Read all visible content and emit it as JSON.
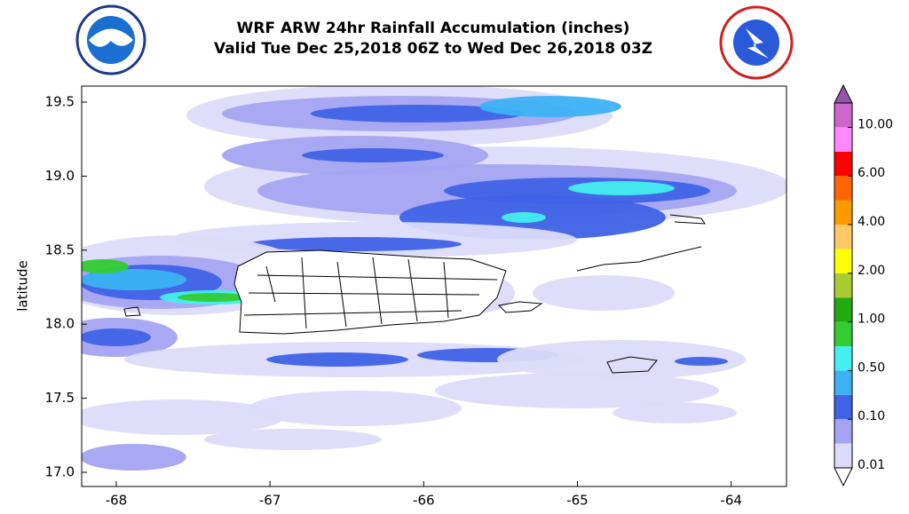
{
  "chart_data": {
    "type": "contour-map",
    "title": "WRF ARW 24hr Rainfall Accumulation (inches)",
    "subtitle": "Valid Tue Dec 25,2018 06Z to Wed Dec 26,2018 03Z",
    "ylabel": "latitude",
    "xlim": [
      -68.225,
      -63.64
    ],
    "ylim": [
      16.904,
      19.608
    ],
    "xticks": [
      -68,
      -67,
      -66,
      -65,
      -64
    ],
    "yticks": [
      {
        "value": 17,
        "label": "17.0"
      },
      17.5,
      {
        "value": 18,
        "label": "18.0"
      },
      18.5,
      {
        "value": 19,
        "label": "19.0"
      },
      19.5
    ],
    "colorbar": {
      "ticks": [
        0.01,
        {
          "value": 0.1,
          "label": "0.10"
        },
        {
          "value": 0.5,
          "label": "0.50"
        },
        {
          "value": 1,
          "label": "1.00"
        },
        {
          "value": 2,
          "label": "2.00"
        },
        {
          "value": 4,
          "label": "4.00"
        },
        {
          "value": 6,
          "label": "6.00"
        },
        {
          "value": 10,
          "label": "10.00"
        }
      ],
      "colors": [
        "#dcdcfa",
        "#a4a4f2",
        "#3f62e6",
        "#3cb2f4",
        "#44eeee",
        "#33cc33",
        "#22aa11",
        "#aacc33",
        "#ffff00",
        "#ffc864",
        "#ff9900",
        "#ff6600",
        "#ff0000",
        "#ff88ff",
        "#cc66cc"
      ],
      "under_color": "#ffffff",
      "over_color": "#9955aa"
    }
  }
}
